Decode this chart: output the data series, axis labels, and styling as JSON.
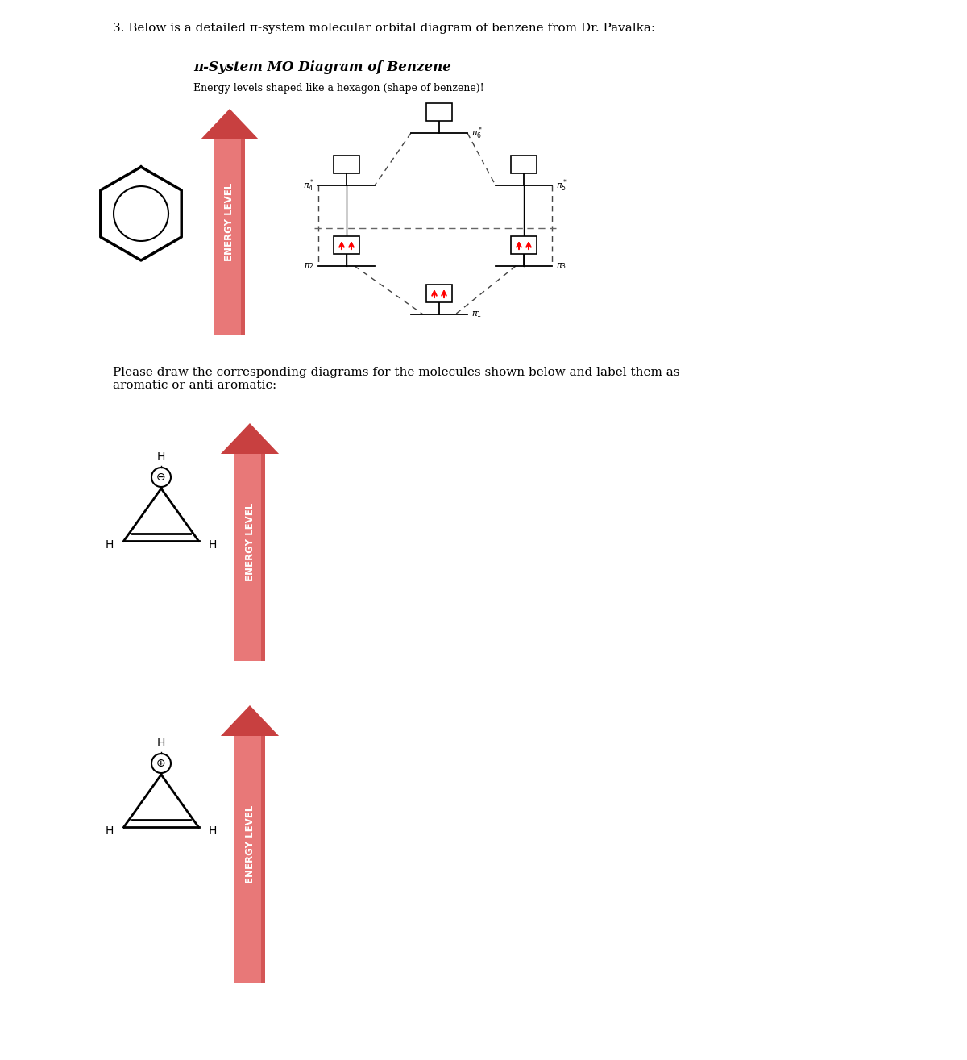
{
  "title_line1": "3. Below is a detailed π-system molecular orbital diagram of benzene from Dr. Pavalka:",
  "mo_title": "π-System MO Diagram of Benzene",
  "mo_subtitle": "Energy levels shaped like a hexagon (shape of benzene)!",
  "please_text": "Please draw the corresponding diagrams for the molecules shown below and label them as\naromatic or anti-aromatic:",
  "energy_level_label": "ENERGY LEVEL",
  "arrow_color_light": "#E87878",
  "arrow_color_dark": "#C84040",
  "background_color": "#FFFFFF",
  "fig_width": 12.0,
  "fig_height": 13.15
}
